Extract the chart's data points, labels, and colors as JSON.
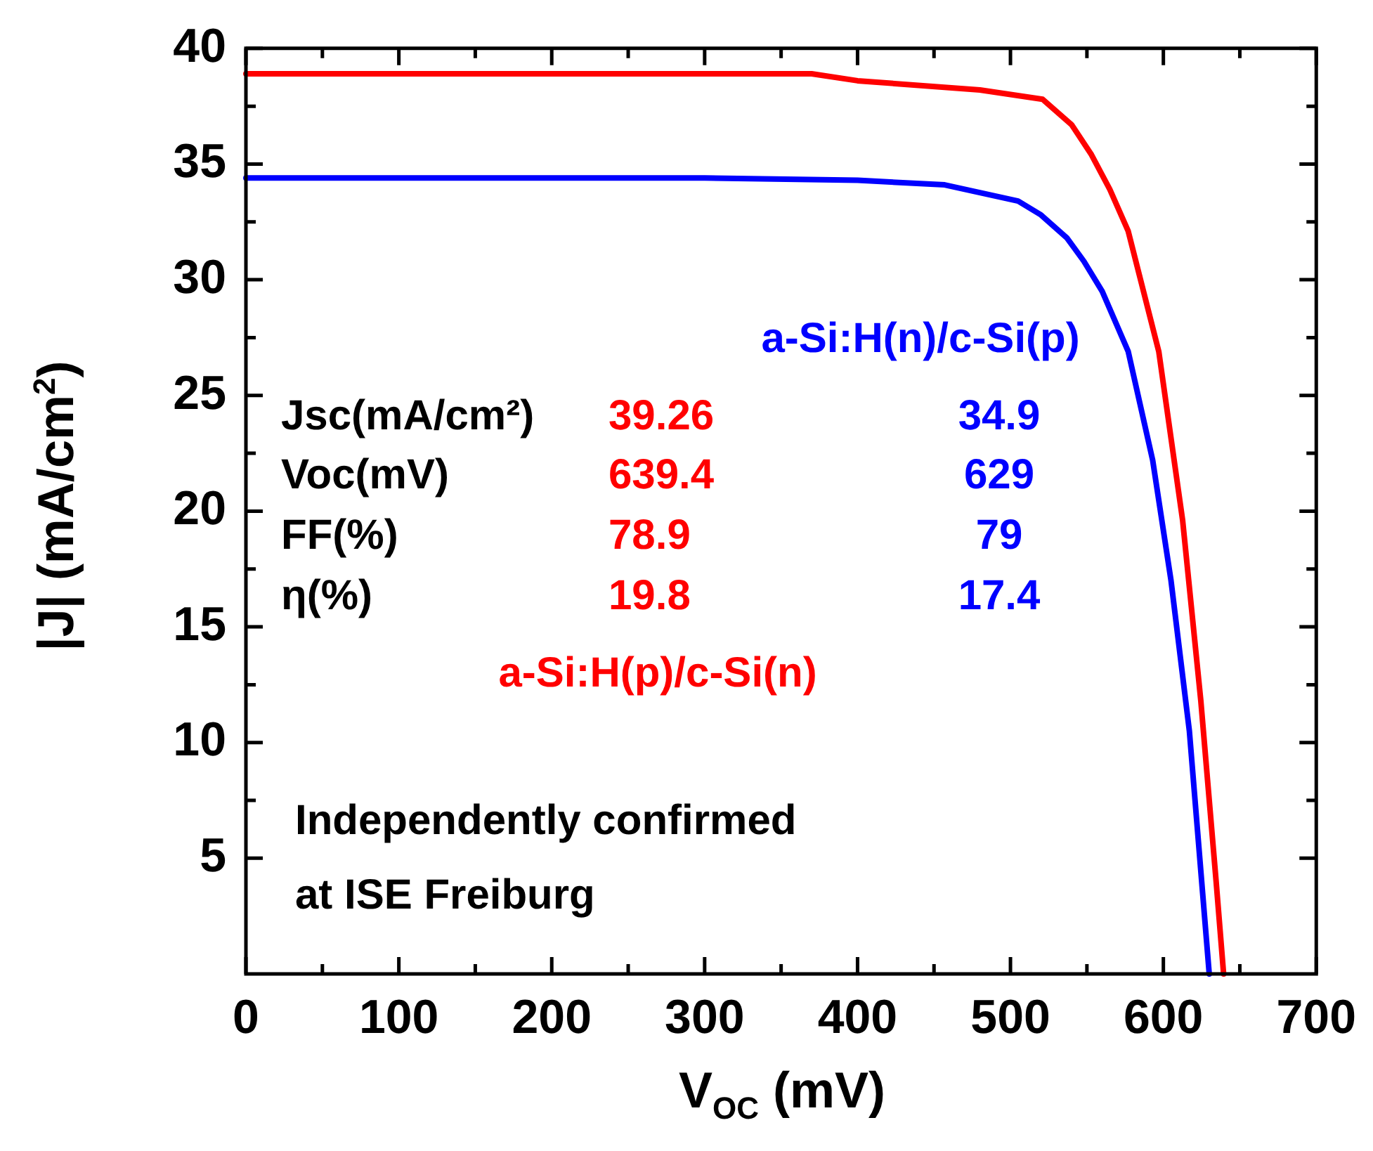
{
  "chart_data": {
    "type": "line",
    "xlabel": "V$_{OC}$  (mV)",
    "ylabel": "|J| (mA/cm$^{2}$)",
    "xlim": [
      0,
      700
    ],
    "xticks": [
      0,
      100,
      200,
      300,
      400,
      500,
      600,
      700
    ],
    "ylim": [
      0,
      40
    ],
    "yticks": [
      5,
      10,
      15,
      20,
      25,
      30,
      35,
      40
    ],
    "grid": false,
    "legend": false,
    "marker": "none",
    "line_style": "solid",
    "series": [
      {
        "name": "a-Si:H(p)/c-Si(n)",
        "color": "#ff0000",
        "x": [
          0,
          100,
          200,
          300,
          370,
          400,
          480,
          521,
          540,
          553,
          565,
          577,
          597,
          612.6,
          624.5,
          634.5,
          639.4
        ],
        "values": [
          38.9,
          38.9,
          38.9,
          38.9,
          38.9,
          38.6,
          38.2,
          37.8,
          36.7,
          35.4,
          33.9,
          32.1,
          26.9,
          19.6,
          11.8,
          4.0,
          0
        ]
      },
      {
        "name": "a-Si:H(n)/c-Si(p)",
        "color": "#0000ff",
        "x": [
          0,
          100,
          200,
          300,
          400,
          457,
          505,
          520,
          537,
          548,
          560,
          577,
          593,
          605,
          617,
          630
        ],
        "values": [
          34.4,
          34.4,
          34.4,
          34.4,
          34.3,
          34.1,
          33.4,
          32.8,
          31.8,
          30.8,
          29.5,
          26.9,
          22.2,
          17.0,
          10.5,
          0
        ]
      }
    ],
    "annotations": [
      "Jsc(mA/cm²)",
      "39.26",
      "34.9",
      "Voc(mV)",
      "639.4",
      "629",
      "FF(%)",
      "78.9",
      "79",
      "η(%)",
      "19.8",
      "17.4",
      "Independently confirmed\nat ISE Freiburg"
    ]
  }
}
